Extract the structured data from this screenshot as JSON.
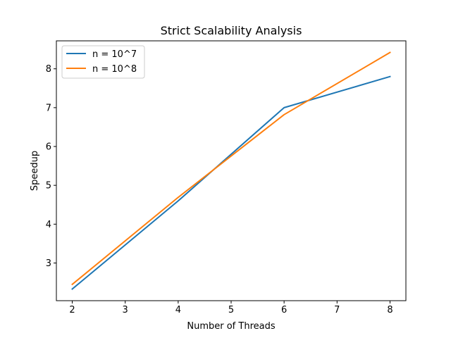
{
  "chart_data": {
    "type": "line",
    "title": "Strict Scalability Analysis",
    "xlabel": "Number of Threads",
    "ylabel": "Speedup",
    "xlim": [
      1.7,
      8.3
    ],
    "ylim": [
      2.03,
      8.72
    ],
    "xticks": [
      2,
      3,
      4,
      5,
      6,
      7,
      8
    ],
    "yticks": [
      3,
      4,
      5,
      6,
      7,
      8
    ],
    "grid": false,
    "legend_position": "top-left",
    "series": [
      {
        "name": "n = 10^7",
        "color": "#1f77b4",
        "x": [
          2,
          4,
          6,
          8
        ],
        "y": [
          2.33,
          4.6,
          7.0,
          7.8
        ]
      },
      {
        "name": "n = 10^8",
        "color": "#ff7f0e",
        "x": [
          2,
          4,
          6,
          8
        ],
        "y": [
          2.45,
          4.69,
          6.82,
          8.42
        ]
      }
    ]
  }
}
